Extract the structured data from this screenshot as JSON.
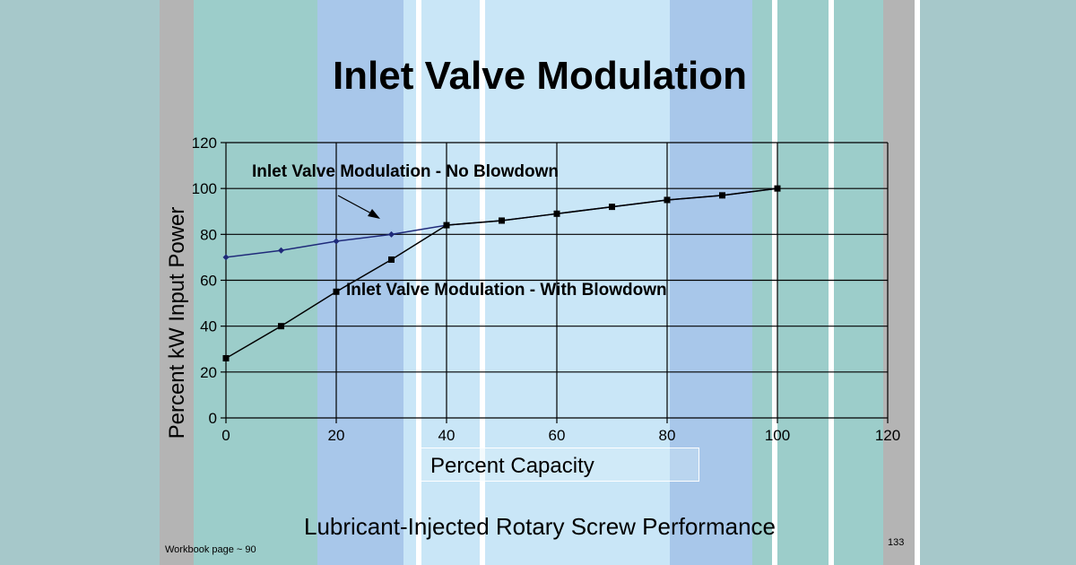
{
  "slide": {
    "title": "Inlet Valve Modulation",
    "subtitle": "Lubricant-Injected Rotary Screw Performance",
    "workbook_note": "Workbook page ~ 90",
    "page_number": "133",
    "colors": {
      "background_outer": "#a9c9cb",
      "teal_band": "#9ccdca",
      "mid_blue_band": "#a8c7ea",
      "light_blue_band": "#c9e6f7",
      "gray_band": "#b4b4b4",
      "series_no_blowdown": "#1f2a7a",
      "series_with_blowdown": "#000000"
    }
  },
  "annotations": {
    "no_blowdown": "Inlet Valve Modulation - No Blowdown",
    "with_blowdown": "Inlet Valve Modulation - With Blowdown"
  },
  "chart_data": {
    "type": "line",
    "xlabel": "Percent Capacity",
    "ylabel": "Percent kW Input Power",
    "xlim": [
      0,
      120
    ],
    "ylim": [
      0,
      120
    ],
    "xticks": [
      0,
      20,
      40,
      60,
      80,
      100,
      120
    ],
    "yticks": [
      0,
      20,
      40,
      60,
      80,
      100,
      120
    ],
    "grid": true,
    "series": [
      {
        "name": "Inlet Valve Modulation - No Blowdown",
        "x": [
          0,
          10,
          20,
          30,
          40,
          50,
          60,
          70,
          80,
          90,
          100
        ],
        "values": [
          70,
          73,
          77,
          80,
          84,
          86,
          89,
          92,
          95,
          97,
          100
        ]
      },
      {
        "name": "Inlet Valve Modulation - With Blowdown",
        "x": [
          0,
          10,
          20,
          30,
          40,
          50,
          60,
          70,
          80,
          90,
          100
        ],
        "values": [
          26,
          40,
          55,
          69,
          84,
          86,
          89,
          92,
          95,
          97,
          100
        ]
      }
    ]
  }
}
